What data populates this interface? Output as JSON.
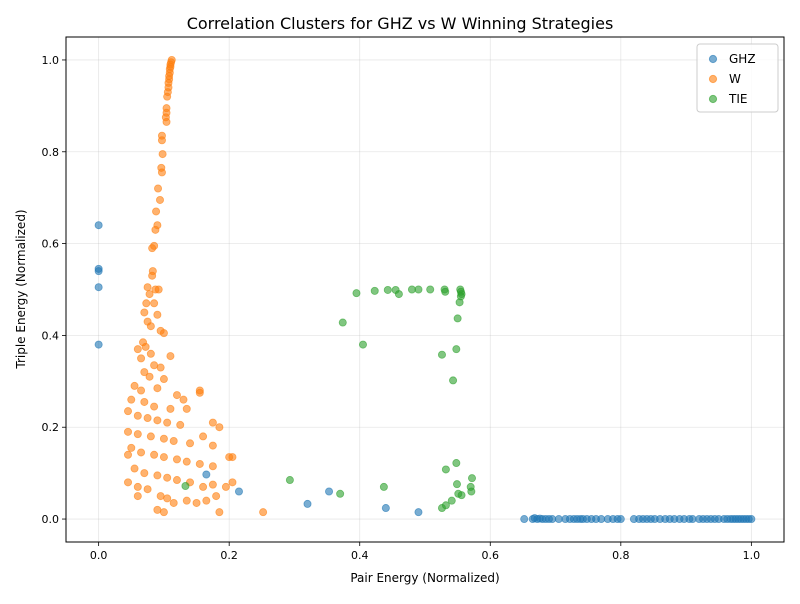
{
  "chart_data": {
    "type": "scatter",
    "title": "Correlation Clusters for GHZ vs W Winning Strategies",
    "xlabel": "Pair Energy (Normalized)",
    "ylabel": "Triple Energy (Normalized)",
    "xlim": [
      -0.05,
      1.05
    ],
    "ylim": [
      -0.05,
      1.05
    ],
    "xticks": [
      0.0,
      0.2,
      0.4,
      0.6,
      0.8,
      1.0
    ],
    "xtick_labels": [
      "0.0",
      "0.2",
      "0.4",
      "0.6",
      "0.8",
      "1.0"
    ],
    "yticks": [
      0.0,
      0.2,
      0.4,
      0.6,
      0.8,
      1.0
    ],
    "ytick_labels": [
      "0.0",
      "0.2",
      "0.4",
      "0.6",
      "0.8",
      "1.0"
    ],
    "grid": true,
    "legend_position": "top-right",
    "series": [
      {
        "name": "GHZ",
        "color": "#1f77b4",
        "points": [
          [
            0.0,
            0.64
          ],
          [
            0.0,
            0.545
          ],
          [
            0.0,
            0.54
          ],
          [
            0.0,
            0.505
          ],
          [
            0.0,
            0.38
          ],
          [
            0.165,
            0.097
          ],
          [
            0.215,
            0.06
          ],
          [
            0.32,
            0.033
          ],
          [
            0.353,
            0.06
          ],
          [
            0.44,
            0.024
          ],
          [
            0.49,
            0.015
          ],
          [
            0.652,
            0.0
          ],
          [
            0.665,
            0.0
          ],
          [
            0.668,
            0.002
          ],
          [
            0.672,
            0.0
          ],
          [
            0.676,
            0.001
          ],
          [
            0.68,
            0.0
          ],
          [
            0.685,
            0.0
          ],
          [
            0.69,
            0.0
          ],
          [
            0.695,
            0.0
          ],
          [
            0.705,
            0.0
          ],
          [
            0.715,
            0.0
          ],
          [
            0.722,
            0.0
          ],
          [
            0.728,
            0.0
          ],
          [
            0.733,
            0.0
          ],
          [
            0.738,
            0.0
          ],
          [
            0.742,
            0.0
          ],
          [
            0.748,
            0.0
          ],
          [
            0.755,
            0.0
          ],
          [
            0.762,
            0.0
          ],
          [
            0.77,
            0.0
          ],
          [
            0.78,
            0.0
          ],
          [
            0.788,
            0.0
          ],
          [
            0.795,
            0.0
          ],
          [
            0.8,
            0.0
          ],
          [
            0.82,
            0.0
          ],
          [
            0.828,
            0.0
          ],
          [
            0.834,
            0.0
          ],
          [
            0.84,
            0.0
          ],
          [
            0.846,
            0.0
          ],
          [
            0.852,
            0.0
          ],
          [
            0.86,
            0.0
          ],
          [
            0.868,
            0.0
          ],
          [
            0.875,
            0.0
          ],
          [
            0.882,
            0.0
          ],
          [
            0.89,
            0.0
          ],
          [
            0.897,
            0.0
          ],
          [
            0.905,
            0.0
          ],
          [
            0.91,
            0.0
          ],
          [
            0.92,
            0.0
          ],
          [
            0.926,
            0.0
          ],
          [
            0.932,
            0.0
          ],
          [
            0.938,
            0.0
          ],
          [
            0.944,
            0.0
          ],
          [
            0.95,
            0.0
          ],
          [
            0.958,
            0.0
          ],
          [
            0.963,
            0.0
          ],
          [
            0.968,
            0.0
          ],
          [
            0.972,
            0.0
          ],
          [
            0.976,
            0.0
          ],
          [
            0.98,
            0.0
          ],
          [
            0.984,
            0.0
          ],
          [
            0.988,
            0.0
          ],
          [
            0.992,
            0.0
          ],
          [
            0.996,
            0.0
          ],
          [
            1.0,
            0.0
          ]
        ]
      },
      {
        "name": "W",
        "color": "#ff7f0e",
        "points": [
          [
            0.112,
            1.0
          ],
          [
            0.111,
            0.995
          ],
          [
            0.11,
            0.99
          ],
          [
            0.11,
            0.985
          ],
          [
            0.109,
            0.98
          ],
          [
            0.109,
            0.972
          ],
          [
            0.108,
            0.965
          ],
          [
            0.108,
            0.958
          ],
          [
            0.107,
            0.95
          ],
          [
            0.107,
            0.94
          ],
          [
            0.106,
            0.93
          ],
          [
            0.105,
            0.92
          ],
          [
            0.104,
            0.895
          ],
          [
            0.104,
            0.885
          ],
          [
            0.103,
            0.875
          ],
          [
            0.104,
            0.865
          ],
          [
            0.097,
            0.835
          ],
          [
            0.097,
            0.825
          ],
          [
            0.098,
            0.795
          ],
          [
            0.096,
            0.765
          ],
          [
            0.097,
            0.755
          ],
          [
            0.091,
            0.72
          ],
          [
            0.094,
            0.695
          ],
          [
            0.088,
            0.67
          ],
          [
            0.09,
            0.64
          ],
          [
            0.087,
            0.63
          ],
          [
            0.082,
            0.59
          ],
          [
            0.085,
            0.595
          ],
          [
            0.083,
            0.54
          ],
          [
            0.082,
            0.53
          ],
          [
            0.075,
            0.505
          ],
          [
            0.078,
            0.49
          ],
          [
            0.092,
            0.5
          ],
          [
            0.087,
            0.5
          ],
          [
            0.073,
            0.47
          ],
          [
            0.085,
            0.47
          ],
          [
            0.07,
            0.45
          ],
          [
            0.09,
            0.445
          ],
          [
            0.075,
            0.43
          ],
          [
            0.08,
            0.42
          ],
          [
            0.095,
            0.41
          ],
          [
            0.1,
            0.405
          ],
          [
            0.068,
            0.385
          ],
          [
            0.072,
            0.375
          ],
          [
            0.08,
            0.36
          ],
          [
            0.11,
            0.355
          ],
          [
            0.06,
            0.37
          ],
          [
            0.065,
            0.35
          ],
          [
            0.085,
            0.335
          ],
          [
            0.095,
            0.33
          ],
          [
            0.07,
            0.32
          ],
          [
            0.078,
            0.31
          ],
          [
            0.1,
            0.305
          ],
          [
            0.055,
            0.29
          ],
          [
            0.065,
            0.28
          ],
          [
            0.09,
            0.285
          ],
          [
            0.12,
            0.27
          ],
          [
            0.13,
            0.26
          ],
          [
            0.155,
            0.28
          ],
          [
            0.155,
            0.275
          ],
          [
            0.05,
            0.26
          ],
          [
            0.07,
            0.255
          ],
          [
            0.085,
            0.245
          ],
          [
            0.11,
            0.24
          ],
          [
            0.135,
            0.24
          ],
          [
            0.045,
            0.235
          ],
          [
            0.06,
            0.225
          ],
          [
            0.075,
            0.22
          ],
          [
            0.09,
            0.215
          ],
          [
            0.105,
            0.21
          ],
          [
            0.125,
            0.205
          ],
          [
            0.175,
            0.21
          ],
          [
            0.185,
            0.2
          ],
          [
            0.045,
            0.19
          ],
          [
            0.06,
            0.185
          ],
          [
            0.08,
            0.18
          ],
          [
            0.1,
            0.175
          ],
          [
            0.115,
            0.17
          ],
          [
            0.14,
            0.165
          ],
          [
            0.16,
            0.18
          ],
          [
            0.175,
            0.16
          ],
          [
            0.2,
            0.135
          ],
          [
            0.205,
            0.135
          ],
          [
            0.05,
            0.155
          ],
          [
            0.065,
            0.145
          ],
          [
            0.085,
            0.14
          ],
          [
            0.1,
            0.135
          ],
          [
            0.12,
            0.13
          ],
          [
            0.135,
            0.125
          ],
          [
            0.155,
            0.12
          ],
          [
            0.175,
            0.115
          ],
          [
            0.045,
            0.14
          ],
          [
            0.055,
            0.11
          ],
          [
            0.07,
            0.1
          ],
          [
            0.09,
            0.095
          ],
          [
            0.105,
            0.09
          ],
          [
            0.12,
            0.085
          ],
          [
            0.14,
            0.08
          ],
          [
            0.16,
            0.07
          ],
          [
            0.175,
            0.075
          ],
          [
            0.195,
            0.07
          ],
          [
            0.205,
            0.08
          ],
          [
            0.045,
            0.08
          ],
          [
            0.06,
            0.07
          ],
          [
            0.075,
            0.065
          ],
          [
            0.095,
            0.05
          ],
          [
            0.105,
            0.045
          ],
          [
            0.115,
            0.035
          ],
          [
            0.135,
            0.04
          ],
          [
            0.15,
            0.035
          ],
          [
            0.165,
            0.04
          ],
          [
            0.18,
            0.05
          ],
          [
            0.09,
            0.02
          ],
          [
            0.1,
            0.015
          ],
          [
            0.185,
            0.015
          ],
          [
            0.252,
            0.015
          ],
          [
            0.06,
            0.05
          ]
        ]
      },
      {
        "name": "TIE",
        "color": "#2ca02c",
        "points": [
          [
            0.395,
            0.492
          ],
          [
            0.423,
            0.497
          ],
          [
            0.443,
            0.499
          ],
          [
            0.455,
            0.499
          ],
          [
            0.46,
            0.49
          ],
          [
            0.48,
            0.5
          ],
          [
            0.49,
            0.5
          ],
          [
            0.508,
            0.5
          ],
          [
            0.53,
            0.5
          ],
          [
            0.531,
            0.495
          ],
          [
            0.554,
            0.5
          ],
          [
            0.555,
            0.495
          ],
          [
            0.556,
            0.49
          ],
          [
            0.555,
            0.485
          ],
          [
            0.553,
            0.472
          ],
          [
            0.55,
            0.437
          ],
          [
            0.374,
            0.428
          ],
          [
            0.405,
            0.38
          ],
          [
            0.548,
            0.37
          ],
          [
            0.526,
            0.358
          ],
          [
            0.543,
            0.302
          ],
          [
            0.548,
            0.122
          ],
          [
            0.532,
            0.108
          ],
          [
            0.572,
            0.089
          ],
          [
            0.549,
            0.076
          ],
          [
            0.57,
            0.07
          ],
          [
            0.571,
            0.06
          ],
          [
            0.551,
            0.055
          ],
          [
            0.556,
            0.052
          ],
          [
            0.541,
            0.04
          ],
          [
            0.532,
            0.03
          ],
          [
            0.526,
            0.024
          ],
          [
            0.437,
            0.07
          ],
          [
            0.37,
            0.055
          ],
          [
            0.293,
            0.085
          ],
          [
            0.133,
            0.072
          ]
        ]
      }
    ]
  }
}
